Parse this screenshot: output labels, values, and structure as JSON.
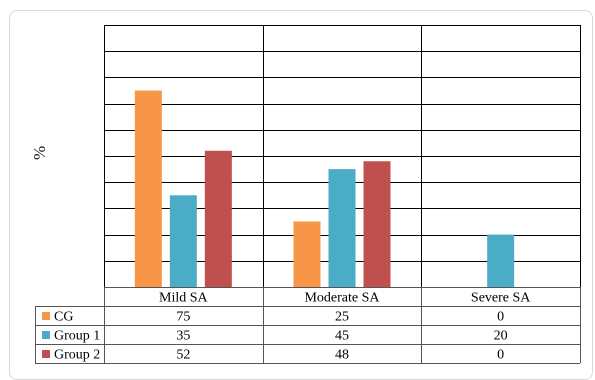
{
  "chart_data": {
    "type": "bar",
    "categories": [
      "Mild SA",
      "Moderate SA",
      "Severe SA"
    ],
    "ylabel": "%",
    "ylim": [
      0,
      100
    ],
    "grid": true,
    "legend": "in-table-left",
    "series": [
      {
        "name": "CG",
        "values": [
          75,
          25,
          0
        ],
        "color": "#f79646"
      },
      {
        "name": "Group 1",
        "values": [
          35,
          45,
          20
        ],
        "color": "#4bacc6"
      },
      {
        "name": "Group 2",
        "values": [
          52,
          48,
          0
        ],
        "color": "#c0504d"
      }
    ]
  }
}
